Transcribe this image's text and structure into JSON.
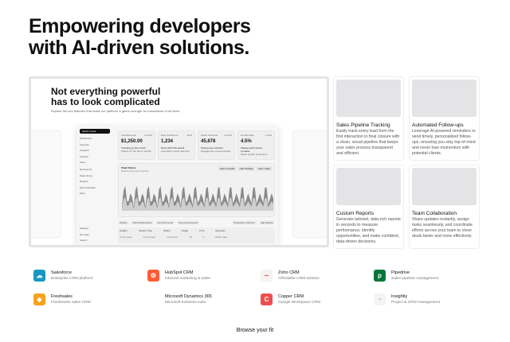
{
  "hero": {
    "line1": "Empowering developers",
    "line2": "with AI-driven solutions."
  },
  "showcase": {
    "title1": "Not everything powerful",
    "title2": "has to look complicated",
    "subtitle": "Explore the key features that make our platform a game-changer for businesses of all sizes.",
    "sidebar": {
      "quick": "Quick Create",
      "items": [
        "Dashboard",
        "Lifecycle",
        "Analytics",
        "Projects",
        "Team"
      ],
      "docs_label": "Documents",
      "docs": [
        "Data Library",
        "Reports",
        "Word Assistant",
        "More"
      ],
      "bottom": [
        "Settings",
        "Get Help",
        "Search"
      ]
    },
    "kpis": [
      {
        "label": "Total Revenue",
        "value": "$1,250.00",
        "badge": "+12.5%",
        "trend": "Trending up this month",
        "note": "Visitors for the last 6 months"
      },
      {
        "label": "New Customers",
        "value": "1,234",
        "badge": "-20%",
        "trend": "Down 20% this period",
        "note": "Acquisition needs attention"
      },
      {
        "label": "Active Accounts",
        "value": "45,678",
        "badge": "+12.5%",
        "trend": "Strong user retention",
        "note": "Engagement exceed targets"
      },
      {
        "label": "Growth Rate",
        "value": "4.5%",
        "badge": "+4.5%",
        "trend": "Steady performance increase",
        "note": "Meets growth projections"
      }
    ],
    "chart": {
      "title": "Total Visitors",
      "subtitle": "Total for the last 3 months",
      "ranges": [
        "Last 3 months",
        "Last 30 days",
        "Last 7 days"
      ]
    },
    "tabs": [
      "Outline",
      "Past Performance",
      "Key Personnel",
      "Focus Documents"
    ],
    "actions": [
      "Customize Columns",
      "Add Section"
    ],
    "table_headers": [
      "Header",
      "Section Type",
      "Status",
      "Target",
      "Limit",
      "Reviewer"
    ],
    "table_row": [
      "Cover page",
      "Cover page",
      "In Process",
      "18",
      "5",
      "Eddie Lake"
    ]
  },
  "features": [
    {
      "title": "Sales Pipeline Tracking",
      "desc": "Easily track every lead from the first interaction to final closure with a clean, visual pipeline that keeps your sales process transparent and efficient."
    },
    {
      "title": "Automated Follow-ups",
      "desc": "Leverage AI-powered reminders to send timely, personalized follow-ups, ensuring you stay top-of-mind and never lose momentum with potential clients."
    },
    {
      "title": "Custom Reports",
      "desc": "Generate tailored, data-rich reports in seconds to measure performance, identify opportunities, and make confident, data-driven decisions."
    },
    {
      "title": "Team Collaboration",
      "desc": "Share updates instantly, assign tasks seamlessly, and coordinate efforts across your team to close deals faster and more effectively."
    }
  ],
  "crms": [
    {
      "name": "Salesforce",
      "desc": "Enterprise CRM platform",
      "color": "#1798c1",
      "glyph": "☁"
    },
    {
      "name": "HubSpot CRM",
      "desc": "Inbound marketing & sales",
      "color": "#ff5c35",
      "glyph": "⚙"
    },
    {
      "name": "Zoho CRM",
      "desc": "Affordable CRM solution",
      "color": "#f4f4f4",
      "glyph": "▪▪▪"
    },
    {
      "name": "Pipedrive",
      "desc": "Sales pipeline management",
      "color": "#017737",
      "glyph": "p"
    },
    {
      "name": "Freshsales",
      "desc": "Freshworks sales CRM",
      "color": "#f7a21b",
      "glyph": "◆"
    },
    {
      "name": "Microsoft Dynamics 365",
      "desc": "Microsoft business suite",
      "color": "#00a4ef",
      "glyph": ""
    },
    {
      "name": "Copper CRM",
      "desc": "Google Workspace CRM",
      "color": "#f04e4e",
      "glyph": "C"
    },
    {
      "name": "Insightly",
      "desc": "Project & CRM management",
      "color": "#f4f4f4",
      "glyph": "~"
    }
  ],
  "browse": "Browse your fit"
}
